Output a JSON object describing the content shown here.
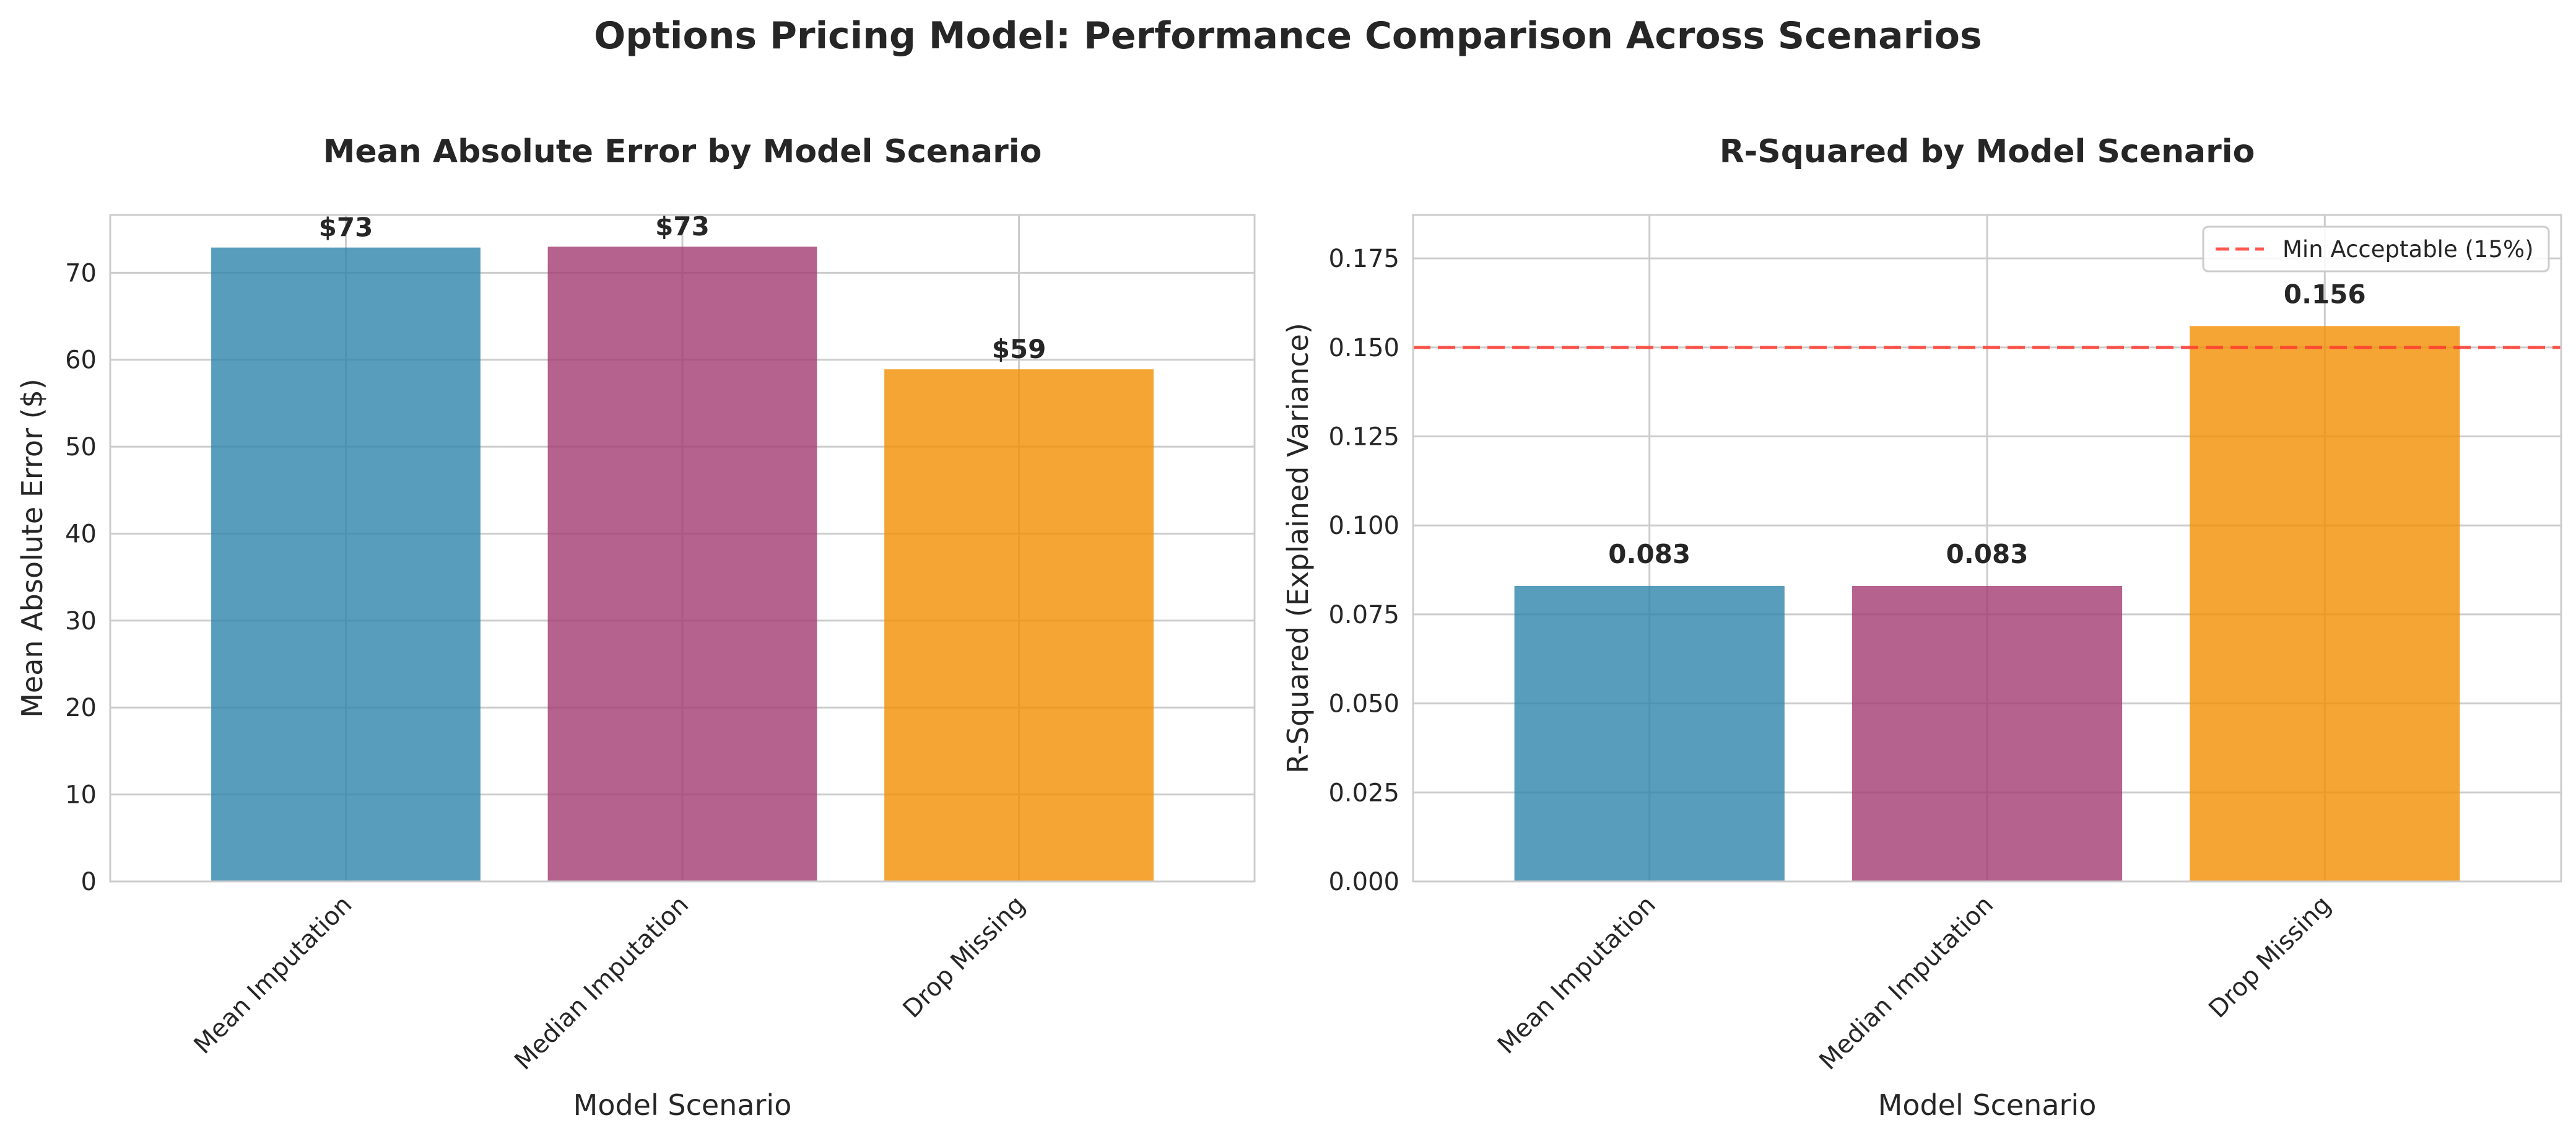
{
  "suptitle": "Options Pricing Model: Performance Comparison Across Scenarios",
  "colors": {
    "mean_imputation": "#2E86AB",
    "median_imputation": "#A23B72",
    "drop_missing": "#F18F01",
    "threshold_line": "#FF3B30",
    "grid": "#CCCCCC",
    "axes_edge": "#CCCCCC",
    "text": "#262626"
  },
  "chart_data": [
    {
      "type": "bar",
      "title": "Mean Absolute Error by Model Scenario",
      "xlabel": "Model Scenario",
      "ylabel": "Mean Absolute Error ($)",
      "categories": [
        "Mean Imputation",
        "Median Imputation",
        "Drop Missing"
      ],
      "values": [
        72.9,
        73.0,
        58.9
      ],
      "data_labels": [
        "$73",
        "$73",
        "$59"
      ],
      "ylim": [
        0,
        76.65
      ],
      "yticks": [
        0,
        10,
        20,
        30,
        40,
        50,
        60,
        70
      ],
      "ytick_labels": [
        "0",
        "10",
        "20",
        "30",
        "40",
        "50",
        "60",
        "70"
      ],
      "grid": true
    },
    {
      "type": "bar",
      "title": "R-Squared by Model Scenario",
      "xlabel": "Model Scenario",
      "ylabel": "R-Squared (Explained Variance)",
      "categories": [
        "Mean Imputation",
        "Median Imputation",
        "Drop Missing"
      ],
      "values": [
        0.083,
        0.083,
        0.156
      ],
      "data_labels": [
        "0.083",
        "0.083",
        "0.156"
      ],
      "ylim": [
        0,
        0.1872
      ],
      "yticks": [
        0,
        0.025,
        0.05,
        0.075,
        0.1,
        0.125,
        0.15,
        0.175
      ],
      "ytick_labels": [
        "0.000",
        "0.025",
        "0.050",
        "0.075",
        "0.100",
        "0.125",
        "0.150",
        "0.175"
      ],
      "grid": true,
      "reference_line": {
        "y": 0.15,
        "label": "Min Acceptable (15%)",
        "style": "dashed"
      },
      "legend_position": "upper-right"
    }
  ]
}
